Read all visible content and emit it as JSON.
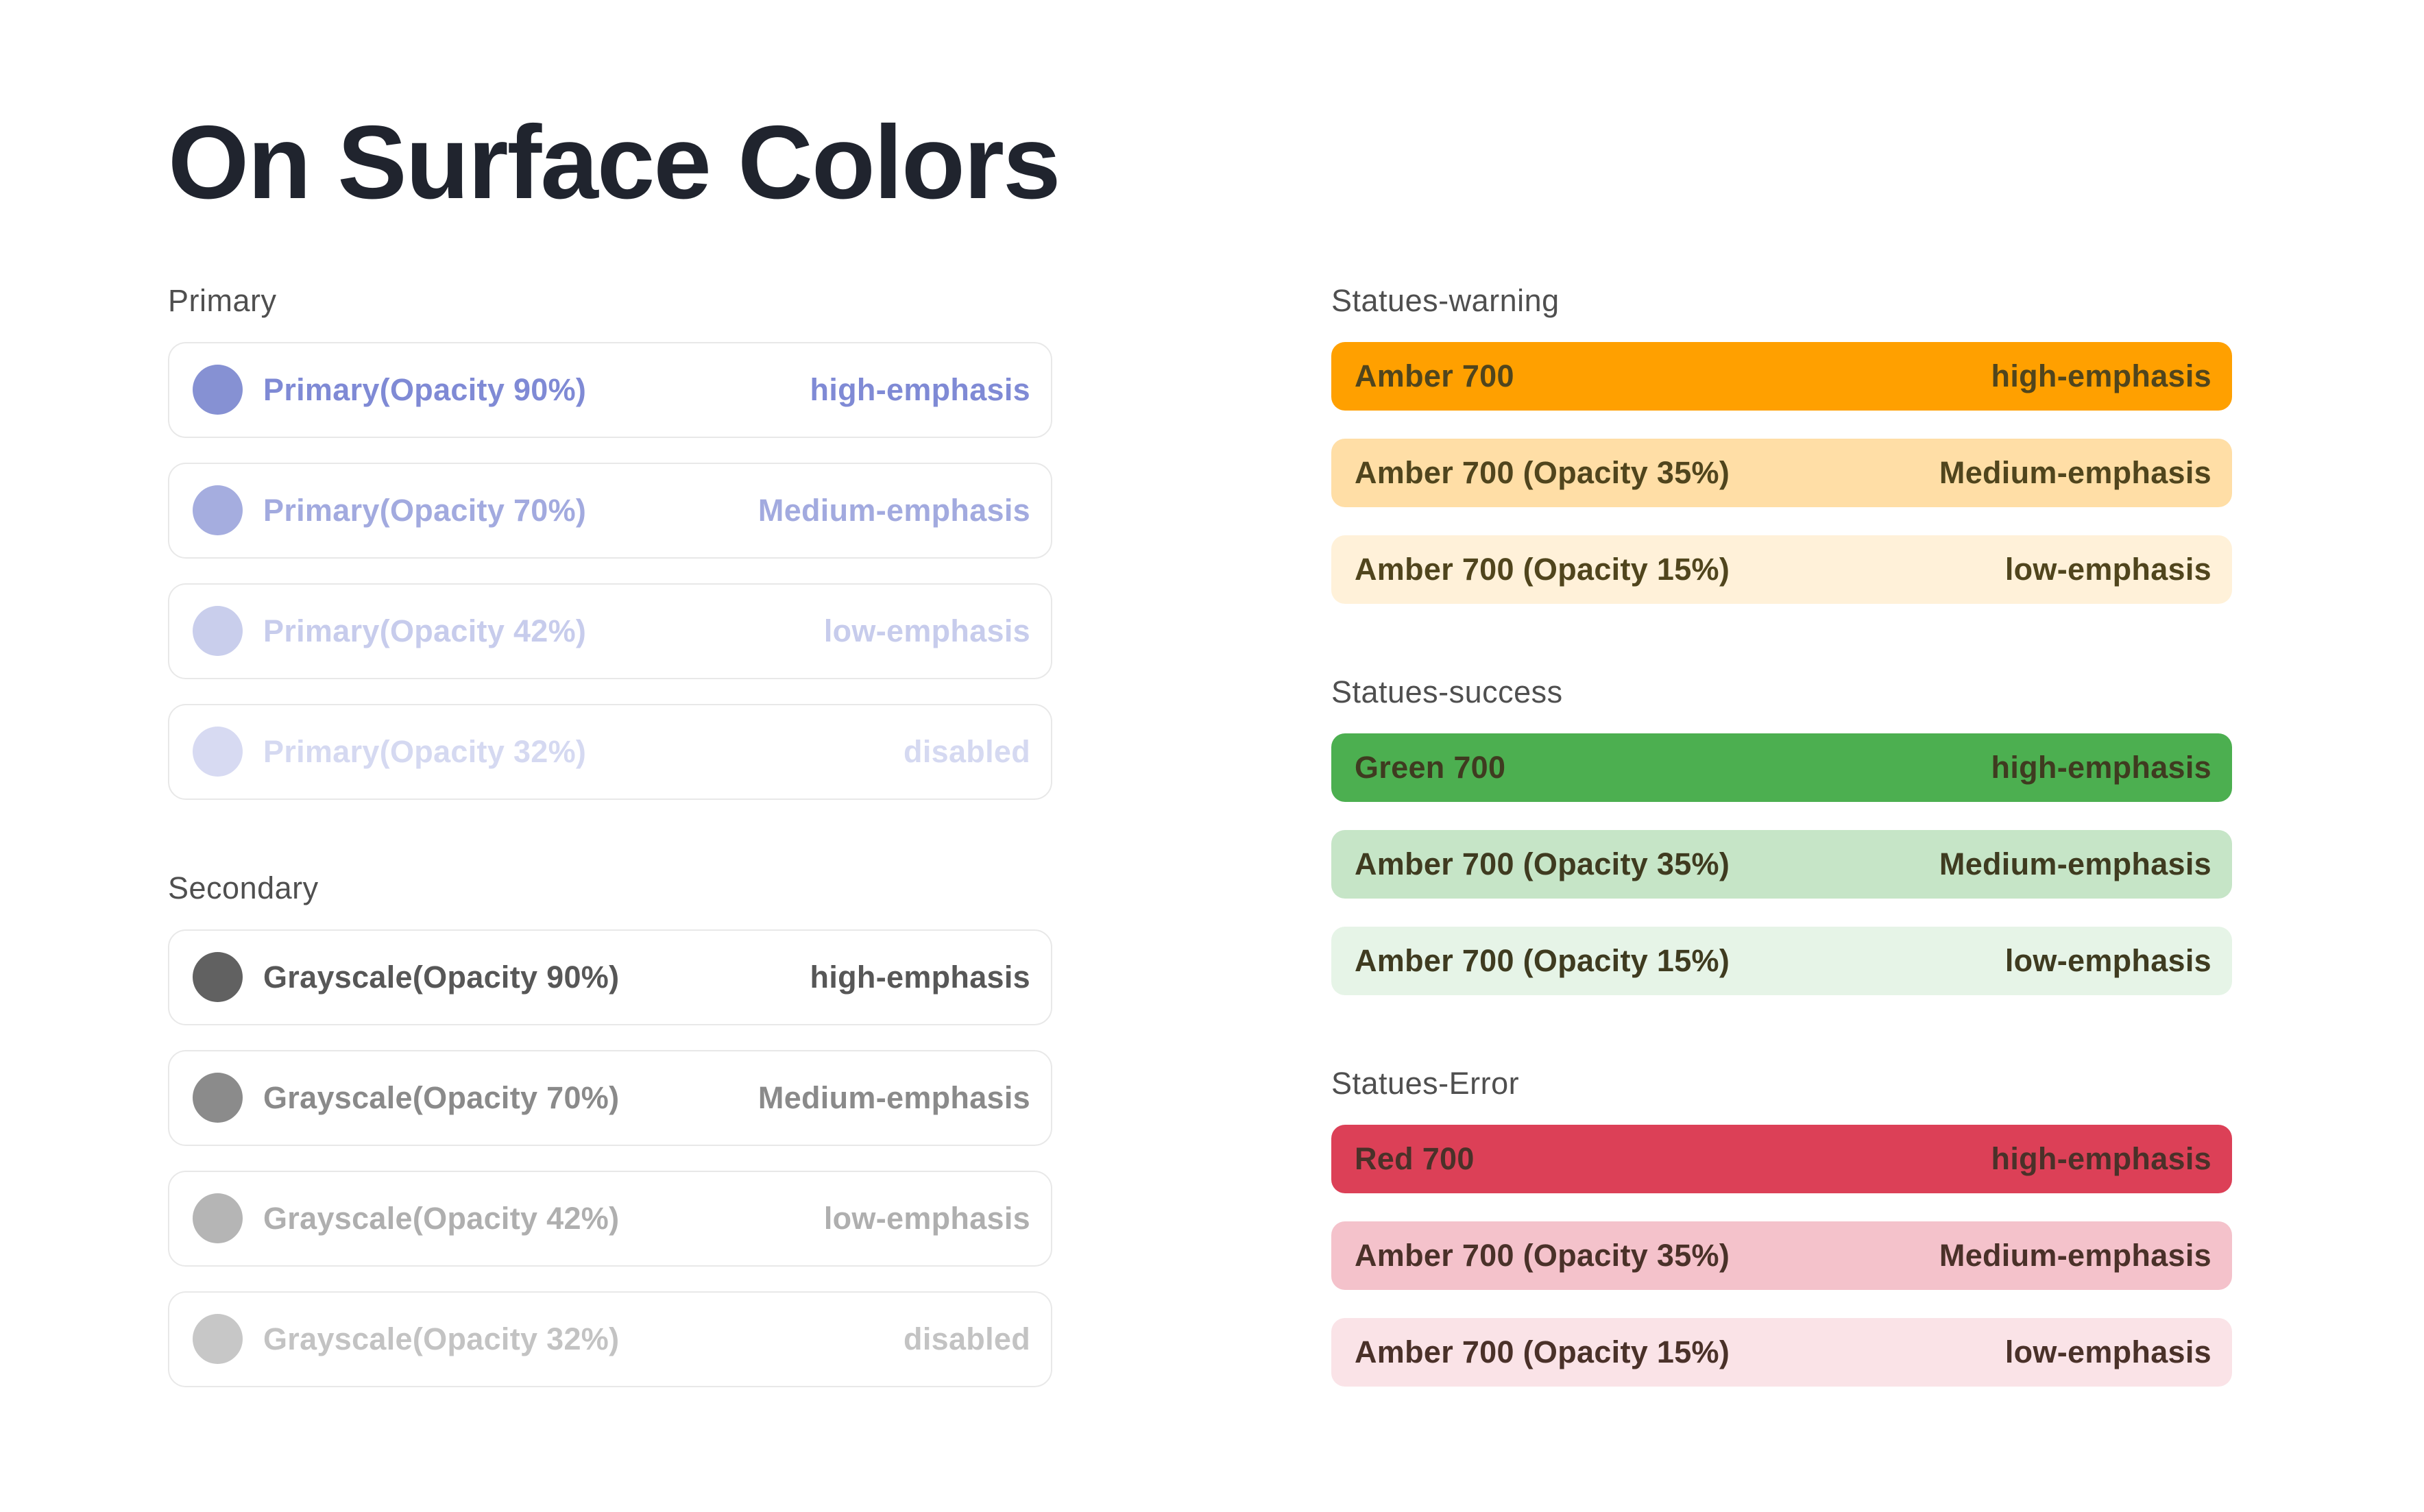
{
  "page": {
    "title": "On Surface Colors",
    "background": "#FFFFFF",
    "title_color": "#20242E",
    "section_label_color": "#4F4F4F"
  },
  "left_sections": [
    {
      "label": "Primary",
      "rows": [
        {
          "name": "Primary(Opacity 90%)",
          "emphasis": "high-emphasis",
          "swatch": "#8691D3",
          "text_color": "#7F8AD5"
        },
        {
          "name": "Primary(Opacity 70%)",
          "emphasis": "Medium-emphasis",
          "swatch": "#A5ADDF",
          "text_color": "#A2AADF"
        },
        {
          "name": "Primary(Opacity 42%)",
          "emphasis": "low-emphasis",
          "swatch": "#C9CEEC",
          "text_color": "#C7CCEC"
        },
        {
          "name": "Primary(Opacity 32%)",
          "emphasis": "disabled",
          "swatch": "#D7DAF2",
          "text_color": "#D5D9F1"
        }
      ]
    },
    {
      "label": "Secondary",
      "rows": [
        {
          "name": "Grayscale(Opacity 90%)",
          "emphasis": "high-emphasis",
          "swatch": "#616161",
          "text_color": "#575757"
        },
        {
          "name": "Grayscale(Opacity 70%)",
          "emphasis": "Medium-emphasis",
          "swatch": "#8B8B8B",
          "text_color": "#8A8A8A"
        },
        {
          "name": "Grayscale(Opacity 42%)",
          "emphasis": "low-emphasis",
          "swatch": "#B5B5B5",
          "text_color": "#AFAFAF"
        },
        {
          "name": "Grayscale(Opacity 32%)",
          "emphasis": "disabled",
          "swatch": "#C7C7C7",
          "text_color": "#C3C3C3"
        }
      ]
    }
  ],
  "right_sections": [
    {
      "label": "Statues-warning",
      "bars": [
        {
          "name": "Amber 700",
          "emphasis": "high-emphasis",
          "bg": "#FFA000",
          "text_color": "#50451D"
        },
        {
          "name": "Amber 700 (Opacity 35%)",
          "emphasis": "Medium-emphasis",
          "bg": "#FFDEA6",
          "text_color": "#50451D"
        },
        {
          "name": "Amber 700 (Opacity 15%)",
          "emphasis": "low-emphasis",
          "bg": "#FFF1D9",
          "text_color": "#50451D"
        }
      ]
    },
    {
      "label": "Statues-success",
      "bars": [
        {
          "name": "Green 700",
          "emphasis": "high-emphasis",
          "bg": "#4CAF50",
          "text_color": "#3F3B20"
        },
        {
          "name": "Amber 700 (Opacity 35%)",
          "emphasis": "Medium-emphasis",
          "bg": "#C6E5C7",
          "text_color": "#3F3B20"
        },
        {
          "name": "Amber 700 (Opacity 15%)",
          "emphasis": "low-emphasis",
          "bg": "#E6F4E7",
          "text_color": "#3F3B20"
        }
      ]
    },
    {
      "label": "Statues-Error",
      "bars": [
        {
          "name": "Red 700",
          "emphasis": "high-emphasis",
          "bg": "#DC4057",
          "text_color": "#4A3129"
        },
        {
          "name": "Amber 700 (Opacity 35%)",
          "emphasis": "Medium-emphasis",
          "bg": "#F4C2CB",
          "text_color": "#4A3129"
        },
        {
          "name": "Amber 700 (Opacity 15%)",
          "emphasis": "low-emphasis",
          "bg": "#FAE3E7",
          "text_color": "#4A3129"
        }
      ]
    }
  ]
}
